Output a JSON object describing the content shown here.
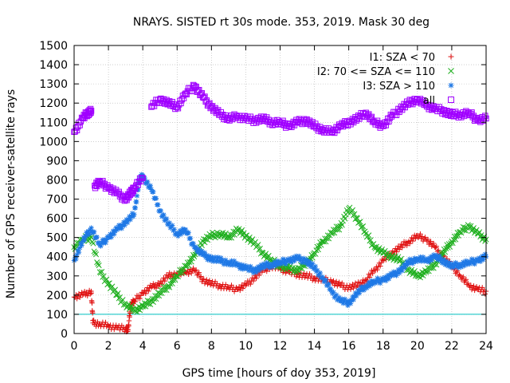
{
  "chart_data": {
    "type": "scatter",
    "title": "NRAYS. SISTED rt 30s mode. 353, 2019. Mask 30 deg",
    "xlabel": "GPS time [hours of doy 353, 2019]",
    "ylabel": "Number of GPS receiver-satellite rays",
    "xlim": [
      0,
      24
    ],
    "ylim": [
      0,
      1500
    ],
    "x_ticks": [
      0,
      2,
      4,
      6,
      8,
      10,
      12,
      14,
      16,
      18,
      20,
      22,
      24
    ],
    "y_ticks": [
      0,
      100,
      200,
      300,
      400,
      500,
      600,
      700,
      800,
      900,
      1000,
      1100,
      1200,
      1300,
      1400,
      1500
    ],
    "grid": true,
    "legend_position": "top-right",
    "reference_line": {
      "y": 100,
      "color": "#00c0c0"
    },
    "series": [
      {
        "name": "I1: SZA < 70",
        "color": "#e01010",
        "marker": "+",
        "x": [
          0,
          0.5,
          1,
          1.1,
          1.5,
          2,
          2.5,
          3,
          3.15,
          3.3,
          3.5,
          4,
          4.5,
          5,
          5.5,
          6,
          6.5,
          7,
          7.5,
          8,
          8.5,
          9,
          9.5,
          10,
          10.5,
          11,
          11.5,
          12,
          12.5,
          13,
          13.5,
          14,
          14.5,
          15,
          15.5,
          16,
          16.5,
          17,
          17.5,
          18,
          18.5,
          19,
          19.5,
          20,
          20.5,
          21,
          21.5,
          22,
          22.5,
          23,
          23.5,
          24
        ],
        "values": [
          190,
          200,
          220,
          55,
          50,
          40,
          30,
          25,
          20,
          150,
          170,
          210,
          240,
          260,
          300,
          310,
          320,
          330,
          280,
          260,
          250,
          240,
          230,
          250,
          290,
          330,
          350,
          340,
          320,
          310,
          300,
          290,
          280,
          270,
          250,
          240,
          250,
          280,
          330,
          380,
          420,
          450,
          480,
          510,
          490,
          450,
          400,
          350,
          300,
          250,
          230,
          220
        ]
      },
      {
        "name": "I2: 70 <= SZA <= 110",
        "color": "#20b020",
        "marker": "x",
        "x": [
          0,
          0.5,
          1,
          1.5,
          2,
          2.5,
          3,
          3.5,
          4,
          4.5,
          5,
          5.5,
          6,
          6.5,
          7,
          7.5,
          8,
          8.5,
          9,
          9.5,
          10,
          10.5,
          11,
          11.5,
          12,
          12.5,
          13,
          13.5,
          14,
          14.5,
          15,
          15.5,
          16,
          16.5,
          17,
          17.5,
          18,
          18.5,
          19,
          19.5,
          20,
          20.5,
          21,
          21.5,
          22,
          22.5,
          23,
          23.5,
          24
        ],
        "values": [
          450,
          490,
          500,
          320,
          260,
          200,
          150,
          120,
          140,
          170,
          210,
          250,
          300,
          350,
          400,
          480,
          510,
          520,
          500,
          540,
          510,
          470,
          420,
          380,
          350,
          340,
          330,
          360,
          420,
          480,
          520,
          560,
          650,
          600,
          520,
          450,
          420,
          400,
          380,
          330,
          300,
          320,
          360,
          420,
          480,
          530,
          560,
          520,
          490
        ]
      },
      {
        "name": "I3: SZA > 110",
        "color": "#1e78e6",
        "marker": "*",
        "x": [
          0,
          0.5,
          1,
          1.5,
          2,
          2.5,
          3,
          3.5,
          3.8,
          4,
          4.5,
          5,
          5.5,
          6,
          6.5,
          7,
          7.5,
          8,
          8.5,
          9,
          9.5,
          10,
          10.5,
          11,
          11.5,
          12,
          12.5,
          13,
          13.5,
          14,
          14.5,
          15,
          15.5,
          16,
          16.5,
          17,
          17.5,
          18,
          18.5,
          19,
          19.5,
          20,
          20.5,
          21,
          21.5,
          22,
          22.5,
          23,
          23.5,
          24
        ],
        "values": [
          380,
          480,
          550,
          460,
          500,
          540,
          580,
          620,
          800,
          820,
          750,
          640,
          570,
          520,
          540,
          450,
          410,
          390,
          380,
          370,
          360,
          340,
          330,
          350,
          360,
          370,
          380,
          390,
          380,
          340,
          290,
          220,
          170,
          160,
          210,
          250,
          270,
          280,
          300,
          330,
          370,
          390,
          380,
          400,
          380,
          350,
          360,
          370,
          380,
          400
        ]
      },
      {
        "name": "all",
        "color": "#a000ff",
        "marker": "square",
        "x": [
          0,
          0.5,
          0.8,
          1,
          1.2,
          1.5,
          2,
          2.5,
          3,
          3.3,
          3.5,
          4,
          4.5,
          5,
          5.5,
          6,
          6.5,
          7,
          7.5,
          8,
          8.5,
          9,
          9.5,
          10,
          10.5,
          11,
          11.5,
          12,
          12.5,
          13,
          13.5,
          14,
          14.5,
          15,
          15.5,
          16,
          16.5,
          17,
          17.5,
          18,
          18.5,
          19,
          19.5,
          20,
          20.5,
          21,
          21.5,
          22,
          22.5,
          23,
          23.5,
          24
        ],
        "values": [
          1050,
          1120,
          1150,
          1160,
          770,
          790,
          760,
          730,
          700,
          730,
          760,
          810,
          1180,
          1220,
          1200,
          1180,
          1250,
          1290,
          1230,
          1180,
          1140,
          1120,
          1130,
          1120,
          1110,
          1120,
          1100,
          1100,
          1080,
          1100,
          1110,
          1080,
          1060,
          1050,
          1080,
          1100,
          1120,
          1150,
          1100,
          1080,
          1130,
          1170,
          1200,
          1220,
          1190,
          1170,
          1160,
          1140,
          1140,
          1150,
          1110,
          1120
        ]
      }
    ]
  }
}
